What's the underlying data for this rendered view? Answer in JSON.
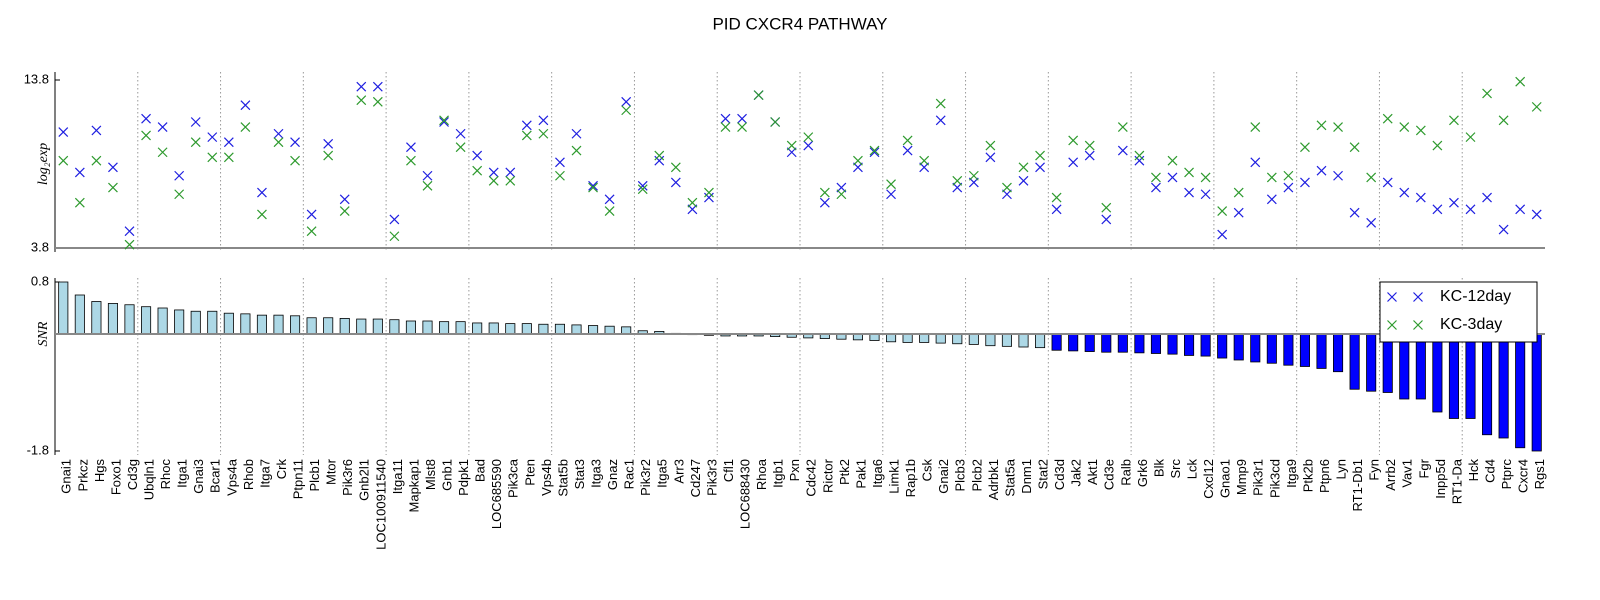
{
  "chart_data": [
    {
      "type": "scatter",
      "title": "PID CXCR4 PATHWAY",
      "ylabel": "log₂exp",
      "ylim": [
        3.8,
        13.8
      ],
      "yticks": [
        3.8,
        13.8
      ],
      "legend": "upper right",
      "series": [
        {
          "name": "KC-12day",
          "color": "#1f1fe0",
          "values": [
            10.7,
            8.3,
            10.8,
            8.6,
            4.8,
            11.5,
            11.0,
            8.1,
            11.3,
            10.4,
            10.1,
            12.3,
            7.1,
            10.6,
            10.1,
            5.8,
            10.0,
            6.7,
            13.4,
            13.4,
            5.5,
            9.8,
            8.1,
            11.3,
            10.6,
            9.3,
            8.3,
            8.3,
            11.1,
            11.4,
            8.9,
            10.6,
            7.5,
            6.7,
            12.5,
            7.5,
            9.0,
            7.7,
            6.1,
            6.8,
            11.5,
            11.5,
            12.9,
            11.3,
            9.5,
            9.9,
            6.5,
            7.4,
            8.6,
            9.5,
            7.0,
            9.6,
            8.6,
            11.4,
            7.4,
            7.7,
            9.2,
            7.0,
            7.8,
            8.6,
            6.1,
            8.9,
            9.3,
            5.5,
            9.6,
            9.0,
            7.4,
            8.0,
            7.1,
            7.0,
            4.6,
            5.9,
            8.9,
            6.7,
            7.4,
            7.7,
            8.4,
            8.1,
            5.9,
            5.3,
            7.7,
            7.1,
            6.8,
            6.1,
            6.5,
            6.1,
            6.8,
            4.9,
            6.1,
            5.8
          ]
        },
        {
          "name": "KC-3day",
          "color": "#2e9a2e",
          "values": [
            9.0,
            6.5,
            9.0,
            7.4,
            4.0,
            10.5,
            9.5,
            7.0,
            10.1,
            9.2,
            9.2,
            11.0,
            5.8,
            10.1,
            9.0,
            4.8,
            9.3,
            6.0,
            12.6,
            12.5,
            4.5,
            9.0,
            7.5,
            11.4,
            9.8,
            8.4,
            7.8,
            7.8,
            10.5,
            10.6,
            8.1,
            9.6,
            7.4,
            6.0,
            12.0,
            7.3,
            9.3,
            8.6,
            6.5,
            7.1,
            11.0,
            11.0,
            12.9,
            11.3,
            9.9,
            10.4,
            7.1,
            7.0,
            9.0,
            9.6,
            7.6,
            10.2,
            9.0,
            12.4,
            7.8,
            8.1,
            9.9,
            7.4,
            8.6,
            9.3,
            6.8,
            10.2,
            9.9,
            6.2,
            11.0,
            9.3,
            8.0,
            9.0,
            8.3,
            8.0,
            6.0,
            7.1,
            11.0,
            8.0,
            8.1,
            9.8,
            11.1,
            11.0,
            9.8,
            8.0,
            11.5,
            11.0,
            10.8,
            9.9,
            11.4,
            10.4,
            13.0,
            11.4,
            13.7,
            12.2
          ]
        }
      ]
    },
    {
      "type": "bar",
      "ylabel": "SNR",
      "ylim": [
        -1.8,
        0.8
      ],
      "yticks": [
        -1.8,
        0.8
      ],
      "categories": [
        "Gnai1",
        "Prkcz",
        "Hgs",
        "Foxo1",
        "Cd3g",
        "Ubqln1",
        "Rhoc",
        "Itga1",
        "Gnai3",
        "Bcar1",
        "Vps4a",
        "Rhob",
        "Itga7",
        "Crk",
        "Ptpn11",
        "Plcb1",
        "Mtor",
        "Pik3r6",
        "Gnb2l1",
        "LOC100911540",
        "Itga11",
        "Mapkap1",
        "Mlst8",
        "Gnb1",
        "Pdpk1",
        "Bad",
        "LOC685590",
        "Pik3ca",
        "Pten",
        "Vps4b",
        "Stat5b",
        "Stat3",
        "Itga3",
        "Gnaz",
        "Rac1",
        "Pik3r2",
        "Itga5",
        "Arr3",
        "Cd247",
        "Pik3r3",
        "Cfl1",
        "LOC688430",
        "Rhoa",
        "Itgb1",
        "Pxn",
        "Cdc42",
        "Rictor",
        "Ptk2",
        "Pak1",
        "Itga6",
        "Limk1",
        "Rap1b",
        "Csk",
        "Gnai2",
        "Plcb3",
        "Plcb2",
        "Adrbk1",
        "Stat5a",
        "Dnm1",
        "Stat2",
        "Cd3d",
        "Jak2",
        "Akt1",
        "Cd3e",
        "Ralb",
        "Grk6",
        "Blk",
        "Src",
        "Lck",
        "Cxcl12",
        "Gnao1",
        "Mmp9",
        "Pik3r1",
        "Pik3cd",
        "Itga9",
        "Ptk2b",
        "Ptpn6",
        "Lyn",
        "RT1-Db1",
        "Fyn",
        "Arrb2",
        "Vav1",
        "Fgr",
        "Inpp5d",
        "RT1-Da",
        "Hck",
        "Cd4",
        "Ptprc",
        "Cxcr4",
        "Rgs1"
      ],
      "values": [
        0.8,
        0.6,
        0.5,
        0.47,
        0.45,
        0.42,
        0.4,
        0.37,
        0.35,
        0.35,
        0.32,
        0.31,
        0.29,
        0.29,
        0.28,
        0.25,
        0.25,
        0.24,
        0.23,
        0.23,
        0.22,
        0.2,
        0.2,
        0.19,
        0.19,
        0.17,
        0.17,
        0.16,
        0.16,
        0.15,
        0.15,
        0.14,
        0.13,
        0.12,
        0.11,
        0.05,
        0.04,
        0.01,
        -0.01,
        -0.02,
        -0.03,
        -0.03,
        -0.03,
        -0.04,
        -0.05,
        -0.06,
        -0.07,
        -0.08,
        -0.09,
        -0.1,
        -0.12,
        -0.13,
        -0.13,
        -0.14,
        -0.15,
        -0.16,
        -0.18,
        -0.19,
        -0.2,
        -0.21,
        -0.25,
        -0.26,
        -0.27,
        -0.28,
        -0.28,
        -0.29,
        -0.3,
        -0.31,
        -0.33,
        -0.34,
        -0.37,
        -0.4,
        -0.43,
        -0.45,
        -0.48,
        -0.5,
        -0.53,
        -0.58,
        -0.85,
        -0.88,
        -0.9,
        -1.0,
        -1.0,
        -1.2,
        -1.3,
        -1.3,
        -1.55,
        -1.6,
        -1.75,
        -1.8
      ],
      "colors": [
        "#add8e6",
        "#add8e6",
        "#add8e6",
        "#add8e6",
        "#add8e6",
        "#add8e6",
        "#add8e6",
        "#add8e6",
        "#add8e6",
        "#add8e6",
        "#add8e6",
        "#add8e6",
        "#add8e6",
        "#add8e6",
        "#add8e6",
        "#add8e6",
        "#add8e6",
        "#add8e6",
        "#add8e6",
        "#add8e6",
        "#add8e6",
        "#add8e6",
        "#add8e6",
        "#add8e6",
        "#add8e6",
        "#add8e6",
        "#add8e6",
        "#add8e6",
        "#add8e6",
        "#add8e6",
        "#add8e6",
        "#add8e6",
        "#add8e6",
        "#add8e6",
        "#add8e6",
        "#add8e6",
        "#add8e6",
        "#add8e6",
        "#add8e6",
        "#add8e6",
        "#add8e6",
        "#add8e6",
        "#add8e6",
        "#add8e6",
        "#add8e6",
        "#add8e6",
        "#add8e6",
        "#add8e6",
        "#add8e6",
        "#add8e6",
        "#add8e6",
        "#add8e6",
        "#add8e6",
        "#add8e6",
        "#add8e6",
        "#add8e6",
        "#add8e6",
        "#add8e6",
        "#add8e6",
        "#add8e6",
        "#0000ff",
        "#0000ff",
        "#0000ff",
        "#0000ff",
        "#0000ff",
        "#0000ff",
        "#0000ff",
        "#0000ff",
        "#0000ff",
        "#0000ff",
        "#0000ff",
        "#0000ff",
        "#0000ff",
        "#0000ff",
        "#0000ff",
        "#0000ff",
        "#0000ff",
        "#0000ff",
        "#0000ff",
        "#0000ff",
        "#0000ff",
        "#0000ff",
        "#0000ff",
        "#0000ff",
        "#0000ff",
        "#0000ff",
        "#0000ff",
        "#0000ff",
        "#0000ff",
        "#0000ff"
      ]
    }
  ]
}
